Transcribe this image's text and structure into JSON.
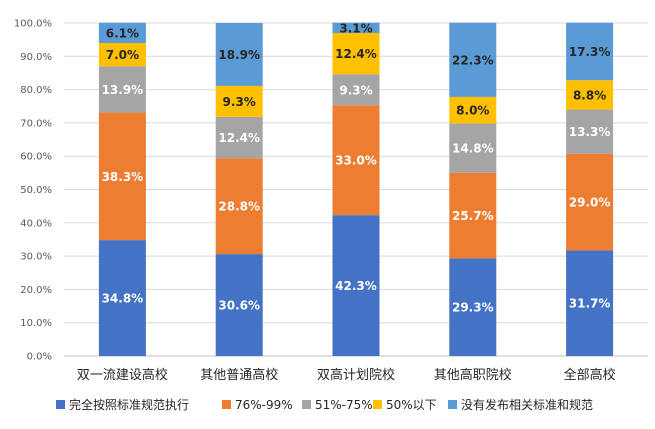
{
  "chart_data": {
    "type": "bar",
    "stacked": true,
    "title": "",
    "xlabel": "",
    "ylabel": "",
    "ylim": [
      0,
      100
    ],
    "yticks": [
      "0.0%",
      "10.0%",
      "20.0%",
      "30.0%",
      "40.0%",
      "50.0%",
      "60.0%",
      "70.0%",
      "80.0%",
      "90.0%",
      "100.0%"
    ],
    "categories": [
      "双一流建设高校",
      "其他普通高校",
      "双高计划院校",
      "其他高职院校",
      "全部高校"
    ],
    "series": [
      {
        "name": "完全按照标准规范执行",
        "color": "#4472C4",
        "label_color": "#ffffff",
        "values": [
          34.8,
          30.6,
          42.3,
          29.3,
          31.7
        ],
        "labels": [
          "34.8%",
          "30.6%",
          "42.3%",
          "29.3%",
          "31.7%"
        ]
      },
      {
        "name": "76%-99%",
        "color": "#ED7D31",
        "label_color": "#ffffff",
        "values": [
          38.3,
          28.8,
          33.0,
          25.7,
          29.0
        ],
        "labels": [
          "38.3%",
          "28.8%",
          "33.0%",
          "25.7%",
          "29.0%"
        ]
      },
      {
        "name": "51%-75%",
        "color": "#A5A5A5",
        "label_color": "#ffffff",
        "values": [
          13.9,
          12.4,
          9.3,
          14.8,
          13.3
        ],
        "labels": [
          "13.9%",
          "12.4%",
          "9.3%",
          "14.8%",
          "13.3%"
        ]
      },
      {
        "name": "50%以下",
        "color": "#FFC000",
        "label_color": "#262626",
        "values": [
          7.0,
          9.3,
          12.4,
          8.0,
          8.8
        ],
        "labels": [
          "7.0%",
          "9.3%",
          "12.4%",
          "8.0%",
          "8.8%"
        ]
      },
      {
        "name": "没有发布相关标准和规范",
        "color": "#5B9BD5",
        "label_color": "#262626",
        "values": [
          6.1,
          18.9,
          3.1,
          22.3,
          17.3
        ],
        "labels": [
          "6.1%",
          "18.9%",
          "3.1%",
          "22.3%",
          "17.3%"
        ]
      }
    ],
    "legend_position": "bottom",
    "grid": true
  }
}
